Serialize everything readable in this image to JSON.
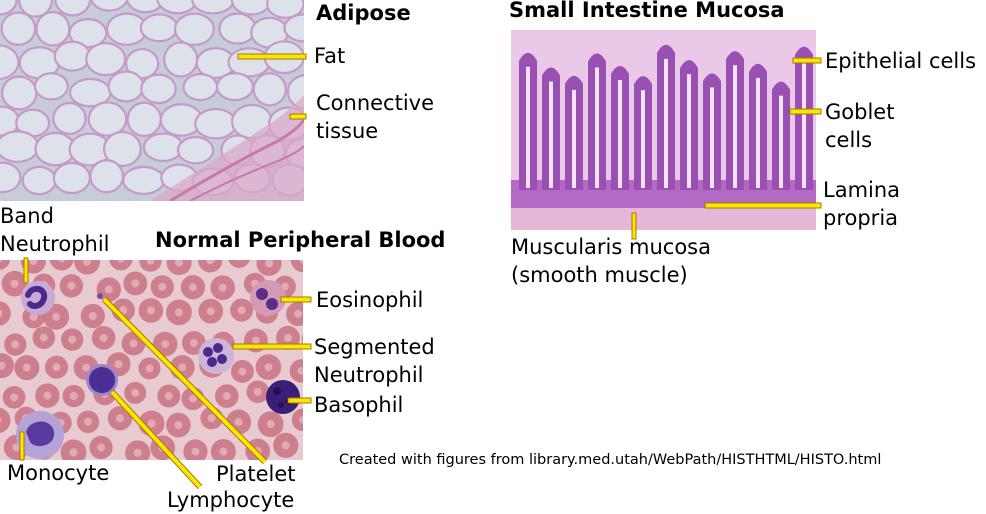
{
  "adipose": {
    "title": "Adipose",
    "labels": {
      "fat": "Fat",
      "connective": [
        "Connective",
        "tissue"
      ]
    }
  },
  "intestine": {
    "title": "Small Intestine Mucosa",
    "labels": {
      "epithelial": "Epithelial cells",
      "goblet": [
        "Goblet",
        "cells"
      ],
      "lamina": [
        "Lamina",
        "propria"
      ],
      "muscularis": [
        "Muscularis mucosa",
        "(smooth muscle)"
      ]
    }
  },
  "blood": {
    "title": "Normal Peripheral Blood",
    "labels": {
      "band": [
        "Band",
        "Neutrophil"
      ],
      "eosinophil": "Eosinophil",
      "segmented": [
        "Segmented",
        "Neutrophil"
      ],
      "basophil": "Basophil",
      "monocyte": "Monocyte",
      "platelet": "Platelet",
      "lymphocyte": "Lymphocyte"
    }
  },
  "credit": "Created with figures from library.med.utah/WebPath/HISTHTML/HISTO.html",
  "colors": {
    "leader_fill": "#ffe600",
    "leader_stroke": "#b08000",
    "adipose_bg": "#c9cedb",
    "adipose_membrane": "#c89ac6",
    "intestine_bg": "#e8c6e6",
    "intestine_villus": "#9b4fb5",
    "blood_bg": "#e8c9cf",
    "rbc": "#c96f80",
    "wbc_nucleus": "#4a2a8a"
  }
}
